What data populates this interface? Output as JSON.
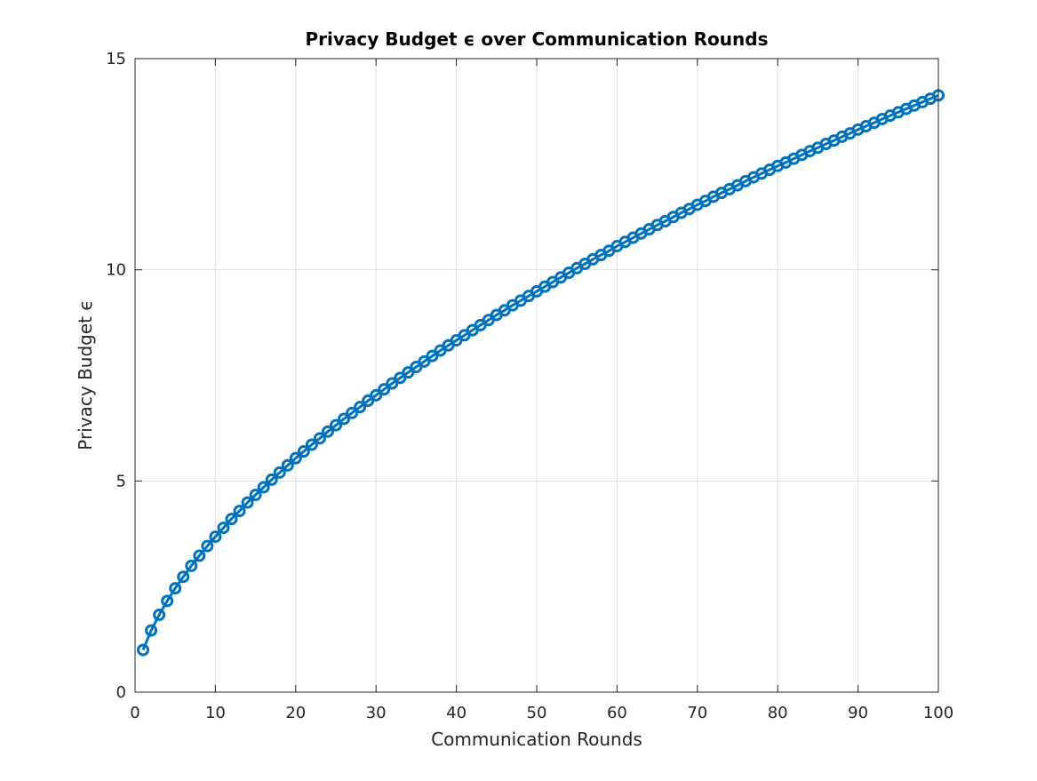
{
  "chart_data": {
    "type": "line",
    "title": "Privacy Budget ϵ over Communication Rounds",
    "xlabel": "Communication Rounds",
    "ylabel": "Privacy Budget ϵ",
    "xlim": [
      0,
      100
    ],
    "ylim": [
      0,
      15
    ],
    "xticks": [
      0,
      10,
      20,
      30,
      40,
      50,
      60,
      70,
      80,
      90,
      100
    ],
    "yticks": [
      0,
      5,
      10,
      15
    ],
    "xtick_labels": [
      "0",
      "10",
      "20",
      "30",
      "40",
      "50",
      "60",
      "70",
      "80",
      "90",
      "100"
    ],
    "ytick_labels": [
      "0",
      "5",
      "10",
      "15"
    ],
    "grid": true,
    "legend": "none",
    "series": [
      {
        "color": "#0072BD",
        "marker": "circle",
        "x": [
          1,
          2,
          3,
          4,
          5,
          6,
          7,
          8,
          9,
          10,
          11,
          12,
          13,
          14,
          15,
          16,
          17,
          18,
          19,
          20,
          21,
          22,
          23,
          24,
          25,
          26,
          27,
          28,
          29,
          30,
          31,
          32,
          33,
          34,
          35,
          36,
          37,
          38,
          39,
          40,
          41,
          42,
          43,
          44,
          45,
          46,
          47,
          48,
          49,
          50,
          51,
          52,
          53,
          54,
          55,
          56,
          57,
          58,
          59,
          60,
          61,
          62,
          63,
          64,
          65,
          66,
          67,
          68,
          69,
          70,
          71,
          72,
          73,
          74,
          75,
          76,
          77,
          78,
          79,
          80,
          81,
          82,
          83,
          84,
          85,
          86,
          87,
          88,
          89,
          90,
          91,
          92,
          93,
          94,
          95,
          96,
          97,
          98,
          99,
          100
        ],
        "y": [
          1.0,
          1.46,
          1.83,
          2.16,
          2.46,
          2.73,
          2.99,
          3.23,
          3.46,
          3.68,
          3.89,
          4.1,
          4.29,
          4.49,
          4.67,
          4.85,
          5.03,
          5.2,
          5.37,
          5.54,
          5.7,
          5.86,
          6.01,
          6.17,
          6.32,
          6.47,
          6.61,
          6.75,
          6.9,
          7.03,
          7.17,
          7.31,
          7.44,
          7.57,
          7.7,
          7.83,
          7.96,
          8.09,
          8.21,
          8.33,
          8.45,
          8.57,
          8.69,
          8.81,
          8.93,
          9.04,
          9.16,
          9.27,
          9.38,
          9.49,
          9.6,
          9.71,
          9.82,
          9.93,
          10.04,
          10.14,
          10.25,
          10.35,
          10.45,
          10.56,
          10.66,
          10.76,
          10.86,
          10.96,
          11.06,
          11.15,
          11.25,
          11.35,
          11.44,
          11.54,
          11.63,
          11.73,
          11.82,
          11.91,
          12.0,
          12.1,
          12.19,
          12.28,
          12.37,
          12.46,
          12.54,
          12.63,
          12.72,
          12.81,
          12.89,
          12.98,
          13.06,
          13.15,
          13.23,
          13.32,
          13.4,
          13.48,
          13.57,
          13.65,
          13.73,
          13.81,
          13.89,
          13.97,
          14.05,
          14.13
        ]
      }
    ]
  }
}
